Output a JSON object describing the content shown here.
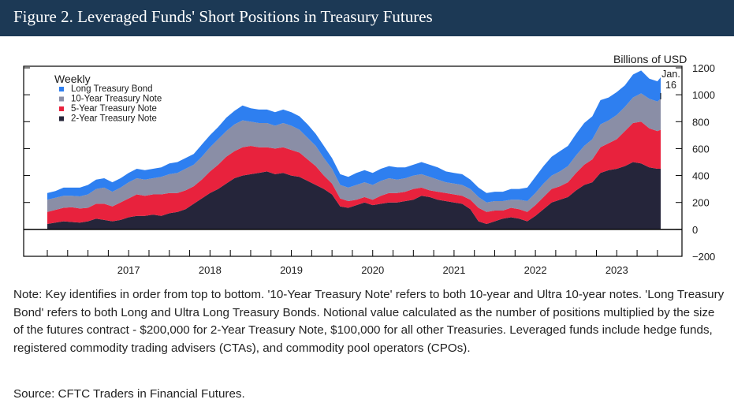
{
  "figure": {
    "title": "Figure 2. Leveraged Funds' Short Positions in Treasury Futures",
    "note": "Note: Key identifies in order from top to bottom. '10-Year Treasury Note' refers to both 10-year and Ultra 10-year notes. 'Long Treasury Bond' refers to both Long and Ultra Long Treasury Bonds. Notional value calculated as the number of positions multiplied by the size of the futures contract - $200,000 for 2-Year Treasury Note, $100,000 for all other Treasuries. Leveraged funds include hedge funds, registered commodity trading advisers (CTAs), and commodity pool operators (CPOs).",
    "source": "Source: CFTC Traders in Financial Futures."
  },
  "chart_data": {
    "type": "area",
    "stacked": true,
    "frequency_label": "Weekly",
    "ylabel": "Billions of USD",
    "ylim": [
      -200,
      1200
    ],
    "yticks": [
      -200,
      0,
      200,
      400,
      600,
      800,
      1000,
      1200
    ],
    "xlim": [
      2016.5,
      2024.2
    ],
    "xticks": [
      "2017",
      "2018",
      "2019",
      "2020",
      "2021",
      "2022",
      "2023"
    ],
    "annotation": {
      "line1": "Jan.",
      "line2": "16",
      "x": 2024.04
    },
    "legend_order_top_to_bottom": [
      "Long Treasury Bond",
      "10-Year Treasury Note",
      "5-Year Treasury Note",
      "2-Year Treasury Note"
    ],
    "x": [
      2016.5,
      2016.6,
      2016.7,
      2016.8,
      2016.9,
      2017.0,
      2017.1,
      2017.2,
      2017.3,
      2017.4,
      2017.5,
      2017.6,
      2017.7,
      2017.8,
      2017.9,
      2018.0,
      2018.1,
      2018.2,
      2018.3,
      2018.4,
      2018.5,
      2018.6,
      2018.7,
      2018.8,
      2018.9,
      2019.0,
      2019.1,
      2019.2,
      2019.3,
      2019.4,
      2019.5,
      2019.6,
      2019.7,
      2019.8,
      2019.9,
      2020.0,
      2020.1,
      2020.2,
      2020.3,
      2020.4,
      2020.5,
      2020.6,
      2020.7,
      2020.8,
      2020.9,
      2021.0,
      2021.1,
      2021.2,
      2021.3,
      2021.4,
      2021.5,
      2021.6,
      2021.7,
      2021.8,
      2021.9,
      2022.0,
      2022.1,
      2022.2,
      2022.3,
      2022.4,
      2022.5,
      2022.6,
      2022.7,
      2022.8,
      2022.9,
      2023.0,
      2023.1,
      2023.2,
      2023.3,
      2023.4,
      2023.5,
      2023.6,
      2023.7,
      2023.8,
      2023.9,
      2024.0,
      2024.04
    ],
    "series": [
      {
        "name": "2-Year Treasury Note",
        "color": "#25253a",
        "values": [
          40,
          50,
          60,
          55,
          50,
          60,
          80,
          70,
          60,
          70,
          90,
          100,
          100,
          110,
          100,
          120,
          130,
          150,
          190,
          230,
          270,
          300,
          340,
          380,
          400,
          410,
          420,
          430,
          410,
          420,
          400,
          390,
          360,
          330,
          300,
          260,
          170,
          160,
          180,
          200,
          180,
          190,
          200,
          200,
          210,
          220,
          250,
          240,
          220,
          210,
          200,
          190,
          150,
          60,
          40,
          60,
          80,
          90,
          80,
          60,
          100,
          150,
          200,
          220,
          240,
          290,
          330,
          350,
          420,
          440,
          450,
          470,
          500,
          490,
          460,
          450,
          450
        ]
      },
      {
        "name": "5-Year Treasury Note",
        "color": "#e8223d",
        "values": [
          90,
          95,
          100,
          110,
          105,
          100,
          110,
          120,
          110,
          130,
          140,
          160,
          150,
          150,
          160,
          150,
          140,
          140,
          130,
          140,
          160,
          180,
          200,
          200,
          210,
          210,
          190,
          180,
          190,
          190,
          190,
          180,
          160,
          140,
          100,
          80,
          60,
          50,
          40,
          40,
          40,
          60,
          70,
          70,
          70,
          80,
          60,
          50,
          60,
          60,
          60,
          60,
          70,
          100,
          90,
          80,
          60,
          70,
          70,
          70,
          80,
          90,
          100,
          100,
          110,
          130,
          150,
          170,
          190,
          200,
          220,
          260,
          290,
          310,
          290,
          280,
          290
        ]
      },
      {
        "name": "10-Year Treasury Note",
        "color": "#8a8ea6",
        "values": [
          90,
          90,
          90,
          85,
          90,
          100,
          110,
          120,
          110,
          110,
          120,
          120,
          120,
          120,
          130,
          140,
          150,
          160,
          160,
          170,
          180,
          190,
          190,
          200,
          200,
          180,
          180,
          180,
          170,
          180,
          180,
          170,
          160,
          150,
          130,
          110,
          100,
          100,
          110,
          110,
          110,
          110,
          110,
          100,
          100,
          100,
          100,
          100,
          90,
          80,
          80,
          80,
          80,
          80,
          70,
          70,
          70,
          60,
          70,
          80,
          90,
          100,
          100,
          110,
          120,
          130,
          140,
          150,
          170,
          170,
          180,
          180,
          190,
          210,
          220,
          220,
          230
        ]
      },
      {
        "name": "Long Treasury Bond",
        "color": "#2e7ff0",
        "values": [
          50,
          50,
          60,
          60,
          65,
          70,
          70,
          70,
          70,
          70,
          70,
          70,
          70,
          70,
          70,
          80,
          80,
          80,
          80,
          90,
          90,
          90,
          100,
          100,
          110,
          100,
          100,
          100,
          100,
          100,
          100,
          100,
          100,
          90,
          90,
          80,
          80,
          80,
          90,
          90,
          90,
          90,
          90,
          90,
          80,
          80,
          90,
          90,
          90,
          80,
          80,
          80,
          70,
          70,
          70,
          70,
          70,
          80,
          80,
          100,
          120,
          130,
          140,
          150,
          150,
          160,
          170,
          170,
          180,
          170,
          170,
          160,
          170,
          170,
          150,
          150,
          160
        ]
      }
    ]
  }
}
